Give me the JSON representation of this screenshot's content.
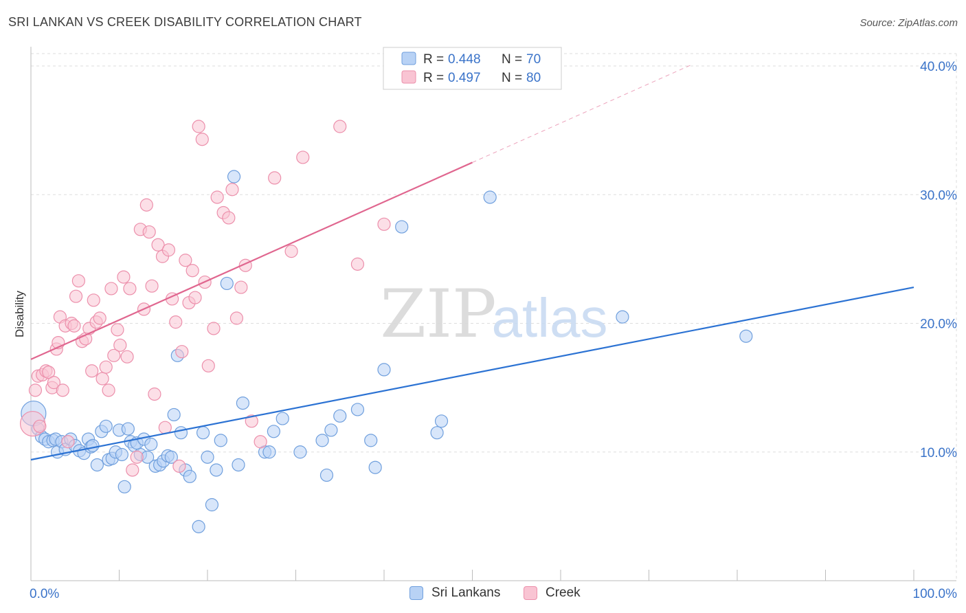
{
  "title": "SRI LANKAN VS CREEK DISABILITY CORRELATION CHART",
  "source": "Source: ZipAtlas.com",
  "watermark": {
    "zip": "ZIP",
    "atlas": "atlas"
  },
  "colors": {
    "blue_fill": "#b8d2f5",
    "blue_stroke": "#6f9fdd",
    "blue_line": "#2b72d3",
    "pink_fill": "#f9c4d3",
    "pink_stroke": "#ec8fab",
    "pink_line": "#e0668f",
    "tick_label": "#3a73c9",
    "grid": "#dddddd"
  },
  "legend_top": [
    {
      "r_label": "R = ",
      "r_value": "0.448",
      "n_label": "N = ",
      "n_value": "70"
    },
    {
      "r_label": "R = ",
      "r_value": "0.497",
      "n_label": "N = ",
      "n_value": "80"
    }
  ],
  "chart_data": {
    "type": "scatter",
    "title": "SRI LANKAN VS CREEK DISABILITY CORRELATION CHART",
    "xlabel": "",
    "ylabel": "Disability",
    "xlim": [
      0,
      100
    ],
    "ylim": [
      0,
      40
    ],
    "x_tick_labels": [
      "0.0%",
      "100.0%"
    ],
    "y_ticks": [
      10,
      20,
      30,
      40
    ],
    "y_tick_labels": [
      "10.0%",
      "20.0%",
      "30.0%",
      "40.0%"
    ],
    "grid": true,
    "legend_position": "bottom-center",
    "series": [
      {
        "name": "Sri Lankans",
        "r": 0.448,
        "n": 70,
        "trend": {
          "x0": 0,
          "y0": 9.4,
          "x1": 100,
          "y1": 22.8,
          "dashed_to": 100
        },
        "points": [
          [
            0.3,
            13.0
          ],
          [
            0.8,
            11.8
          ],
          [
            1.2,
            11.2
          ],
          [
            1.6,
            11.0
          ],
          [
            2.0,
            10.8
          ],
          [
            2.5,
            10.9
          ],
          [
            2.8,
            11.0
          ],
          [
            3.0,
            10.0
          ],
          [
            3.5,
            10.8
          ],
          [
            3.9,
            10.2
          ],
          [
            4.5,
            11.0
          ],
          [
            5.0,
            10.5
          ],
          [
            5.5,
            10.1
          ],
          [
            6.0,
            9.9
          ],
          [
            6.5,
            11.0
          ],
          [
            6.8,
            10.4
          ],
          [
            7.0,
            10.5
          ],
          [
            7.5,
            9.0
          ],
          [
            8.0,
            11.6
          ],
          [
            8.5,
            12.0
          ],
          [
            8.8,
            9.4
          ],
          [
            9.2,
            9.5
          ],
          [
            9.6,
            10.0
          ],
          [
            10.0,
            11.7
          ],
          [
            10.3,
            9.8
          ],
          [
            10.6,
            7.3
          ],
          [
            11.0,
            11.8
          ],
          [
            11.3,
            10.8
          ],
          [
            11.7,
            10.5
          ],
          [
            12.0,
            10.7
          ],
          [
            12.4,
            9.8
          ],
          [
            12.8,
            11.0
          ],
          [
            13.2,
            9.6
          ],
          [
            13.6,
            10.6
          ],
          [
            14.1,
            8.9
          ],
          [
            14.6,
            9.0
          ],
          [
            15.0,
            9.3
          ],
          [
            15.5,
            9.7
          ],
          [
            15.9,
            9.6
          ],
          [
            16.2,
            12.9
          ],
          [
            16.6,
            17.5
          ],
          [
            17.0,
            11.5
          ],
          [
            17.5,
            8.6
          ],
          [
            18.0,
            8.1
          ],
          [
            19.0,
            4.2
          ],
          [
            19.5,
            11.5
          ],
          [
            20.0,
            9.6
          ],
          [
            20.5,
            5.9
          ],
          [
            21.0,
            8.6
          ],
          [
            21.5,
            10.9
          ],
          [
            22.2,
            23.1
          ],
          [
            23.0,
            31.4
          ],
          [
            23.5,
            9.0
          ],
          [
            24.0,
            13.8
          ],
          [
            26.5,
            10.0
          ],
          [
            27.0,
            10.0
          ],
          [
            27.5,
            11.6
          ],
          [
            28.5,
            12.6
          ],
          [
            30.5,
            10.0
          ],
          [
            33.0,
            10.9
          ],
          [
            33.5,
            8.2
          ],
          [
            34.0,
            11.7
          ],
          [
            35.0,
            12.8
          ],
          [
            37.0,
            13.3
          ],
          [
            38.5,
            10.9
          ],
          [
            39.0,
            8.8
          ],
          [
            40.0,
            16.4
          ],
          [
            42.0,
            27.5
          ],
          [
            46.0,
            11.5
          ],
          [
            46.5,
            12.4
          ],
          [
            52.0,
            29.8
          ],
          [
            67.0,
            20.5
          ],
          [
            81.0,
            19.0
          ]
        ]
      },
      {
        "name": "Creek",
        "r": 0.497,
        "n": 80,
        "trend": {
          "x0": 0,
          "y0": 17.2,
          "x1": 50,
          "y1": 32.5,
          "dashed_to": 75
        },
        "points": [
          [
            0.2,
            12.2
          ],
          [
            0.5,
            14.8
          ],
          [
            0.8,
            15.9
          ],
          [
            1.0,
            12.0
          ],
          [
            1.3,
            16.0
          ],
          [
            1.7,
            16.3
          ],
          [
            2.0,
            16.2
          ],
          [
            2.4,
            15.0
          ],
          [
            2.6,
            15.4
          ],
          [
            2.9,
            18.0
          ],
          [
            3.1,
            18.5
          ],
          [
            3.3,
            20.5
          ],
          [
            3.6,
            14.8
          ],
          [
            3.9,
            19.8
          ],
          [
            4.2,
            10.8
          ],
          [
            4.6,
            20.0
          ],
          [
            4.9,
            19.8
          ],
          [
            5.1,
            22.1
          ],
          [
            5.4,
            23.3
          ],
          [
            5.8,
            18.6
          ],
          [
            6.2,
            18.8
          ],
          [
            6.6,
            19.6
          ],
          [
            6.9,
            16.3
          ],
          [
            7.1,
            21.8
          ],
          [
            7.4,
            20.1
          ],
          [
            7.8,
            20.4
          ],
          [
            8.1,
            15.7
          ],
          [
            8.5,
            16.6
          ],
          [
            8.8,
            14.8
          ],
          [
            9.1,
            22.7
          ],
          [
            9.4,
            17.5
          ],
          [
            9.8,
            19.5
          ],
          [
            10.1,
            18.3
          ],
          [
            10.5,
            23.6
          ],
          [
            10.9,
            17.4
          ],
          [
            11.2,
            22.7
          ],
          [
            11.5,
            8.6
          ],
          [
            12.0,
            9.6
          ],
          [
            12.4,
            27.3
          ],
          [
            12.8,
            21.1
          ],
          [
            13.1,
            29.2
          ],
          [
            13.4,
            27.1
          ],
          [
            13.7,
            22.9
          ],
          [
            14.0,
            14.5
          ],
          [
            14.4,
            26.1
          ],
          [
            14.9,
            25.2
          ],
          [
            15.2,
            11.9
          ],
          [
            15.6,
            25.7
          ],
          [
            16.0,
            21.9
          ],
          [
            16.4,
            20.1
          ],
          [
            16.8,
            8.9
          ],
          [
            17.1,
            17.8
          ],
          [
            17.5,
            24.9
          ],
          [
            17.9,
            21.6
          ],
          [
            18.3,
            24.1
          ],
          [
            18.6,
            22.0
          ],
          [
            19.0,
            35.3
          ],
          [
            19.4,
            34.3
          ],
          [
            19.7,
            23.2
          ],
          [
            20.1,
            16.7
          ],
          [
            20.7,
            19.6
          ],
          [
            21.1,
            29.8
          ],
          [
            21.8,
            28.6
          ],
          [
            22.4,
            28.2
          ],
          [
            22.8,
            30.4
          ],
          [
            23.3,
            20.4
          ],
          [
            23.8,
            22.8
          ],
          [
            24.3,
            24.5
          ],
          [
            25.0,
            12.4
          ],
          [
            26.0,
            10.8
          ],
          [
            27.6,
            31.3
          ],
          [
            29.5,
            25.6
          ],
          [
            30.8,
            32.9
          ],
          [
            35.0,
            35.3
          ],
          [
            37.0,
            24.6
          ],
          [
            40.0,
            27.7
          ]
        ]
      }
    ]
  }
}
